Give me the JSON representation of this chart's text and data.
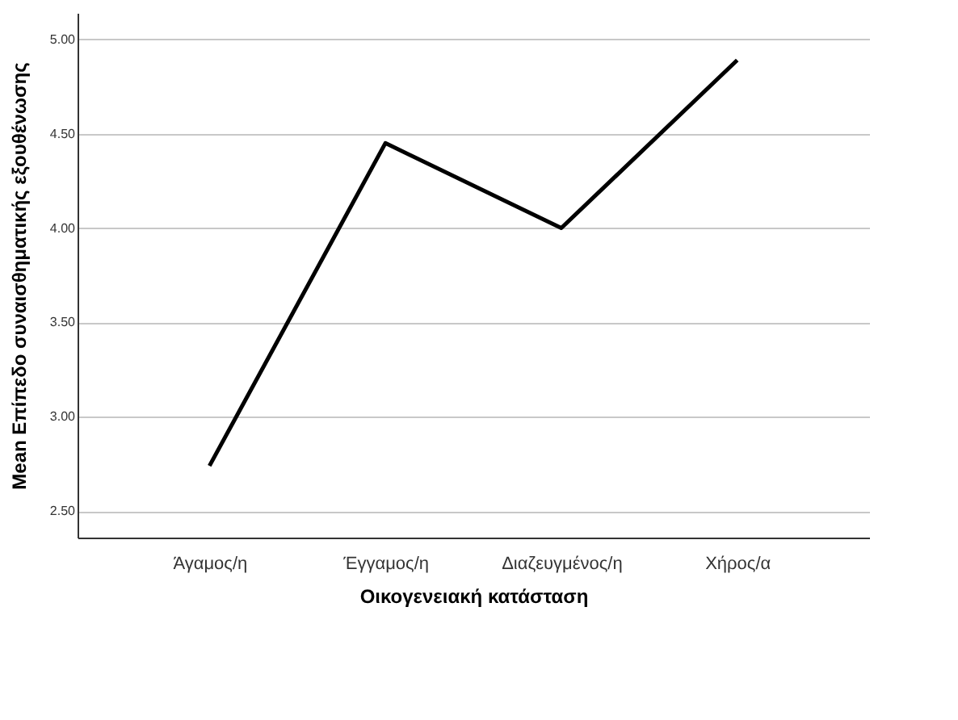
{
  "chart_data": {
    "type": "line",
    "xlabel": "Οικογενειακή κατάσταση",
    "ylabel": "Mean Επίπεδο συναισθηματικής εξουθένωσης",
    "categories": [
      "Άγαμος/η",
      "Έγγαμος/η",
      "Διαζευγμένος/η",
      "Χήρος/α"
    ],
    "series": [
      {
        "color": "#000000",
        "values": [
          2.74,
          4.45,
          4.0,
          4.89
        ]
      }
    ],
    "ylim": [
      2.36,
      5.14
    ],
    "yticks": [
      {
        "value": 2.5,
        "label": "2.50"
      },
      {
        "value": 3.0,
        "label": "3.00"
      },
      {
        "value": 3.5,
        "label": "3.50"
      },
      {
        "value": 4.0,
        "label": "4.00"
      },
      {
        "value": 4.5,
        "label": "4.50"
      },
      {
        "value": 5.0,
        "label": "5.00"
      }
    ],
    "grid": "y",
    "marker": "none",
    "line_style": "solid"
  }
}
